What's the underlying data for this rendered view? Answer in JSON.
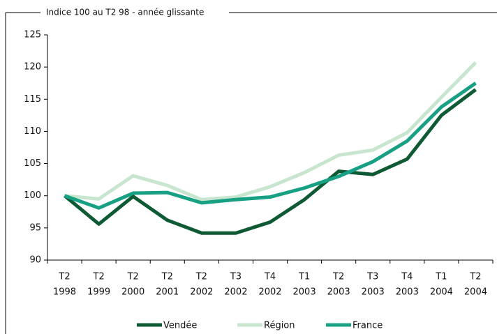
{
  "chart_data": {
    "type": "line",
    "title": "Indice 100 au T2 98 - année glissante",
    "categories": [
      [
        "T2",
        "1998"
      ],
      [
        "T2",
        "1999"
      ],
      [
        "T2",
        "2000"
      ],
      [
        "T2",
        "2001"
      ],
      [
        "T2",
        "2002"
      ],
      [
        "T3",
        "2002"
      ],
      [
        "T4",
        "2002"
      ],
      [
        "T1",
        "2003"
      ],
      [
        "T2",
        "2003"
      ],
      [
        "T3",
        "2003"
      ],
      [
        "T4",
        "2003"
      ],
      [
        "T1",
        "2004"
      ],
      [
        "T2",
        "2004"
      ]
    ],
    "series": [
      {
        "name": "Vendée",
        "color": "#0e5a34",
        "values": [
          100,
          95.6,
          99.9,
          96.2,
          94.2,
          94.2,
          95.9,
          99.4,
          103.8,
          103.3,
          105.7,
          112.5,
          116.5
        ]
      },
      {
        "name": "Région",
        "color": "#c8e6cf",
        "values": [
          100,
          99.5,
          103.1,
          101.6,
          99.4,
          99.8,
          101.4,
          103.6,
          106.3,
          107.1,
          109.8,
          115.3,
          120.7
        ]
      },
      {
        "name": "France",
        "color": "#17a083",
        "values": [
          100,
          98.1,
          100.4,
          100.5,
          98.9,
          99.4,
          99.8,
          101.2,
          103.0,
          105.3,
          108.5,
          113.8,
          117.5
        ]
      }
    ],
    "ylim": [
      90,
      125
    ],
    "yticks": [
      90,
      95,
      100,
      105,
      110,
      115,
      120,
      125
    ],
    "legend": "bottom"
  }
}
